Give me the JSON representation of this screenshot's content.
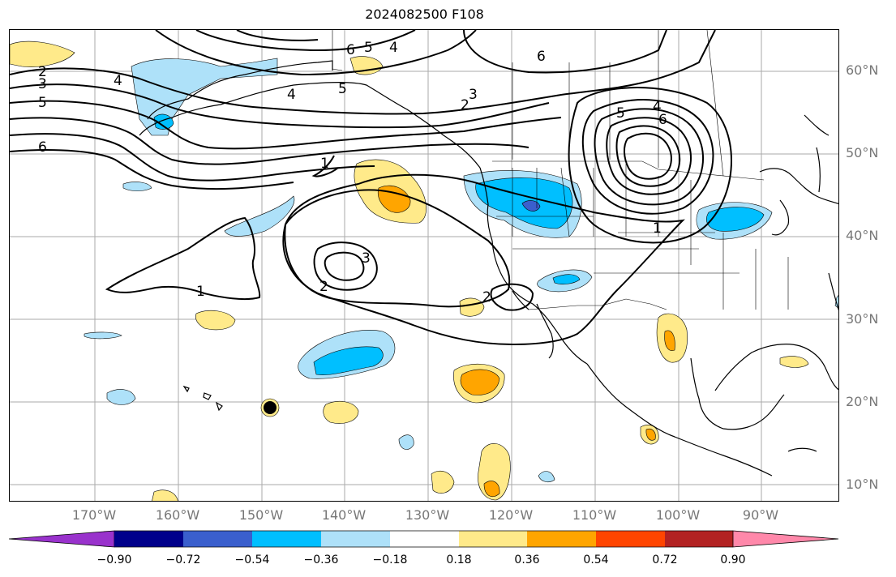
{
  "title": "2024082500 F108",
  "latitude_labels": [
    "60°N",
    "50°N",
    "40°N",
    "30°N",
    "20°N",
    "10°N"
  ],
  "longitude_labels": [
    "170°W",
    "160°W",
    "150°W",
    "140°W",
    "130°W",
    "120°W",
    "110°W",
    "100°W",
    "90°W"
  ],
  "contour_labels": [
    "2",
    "3",
    "4",
    "5",
    "6",
    "4",
    "5",
    "6",
    "5",
    "4",
    "3",
    "2",
    "6",
    "1",
    "2",
    "3",
    "1",
    "2",
    "5",
    "4",
    "6",
    "1"
  ],
  "colorbar": {
    "ticks": [
      "−0.90",
      "−0.72",
      "−0.54",
      "−0.36",
      "−0.18",
      "0.18",
      "0.36",
      "0.54",
      "0.72",
      "0.90"
    ],
    "colors": [
      "#9932cc",
      "#00008b",
      "#3a5fcd",
      "#00bfff",
      "#aee1f9",
      "#ffffff",
      "#ffea8a",
      "#ffa500",
      "#ff4500",
      "#b22222",
      "#ff88aa"
    ]
  },
  "colors": {
    "light_blue": "#aee1f9",
    "blue": "#00bfff",
    "dark_blue": "#3a5fcd",
    "yellow": "#ffea8a",
    "orange": "#ffa500"
  }
}
